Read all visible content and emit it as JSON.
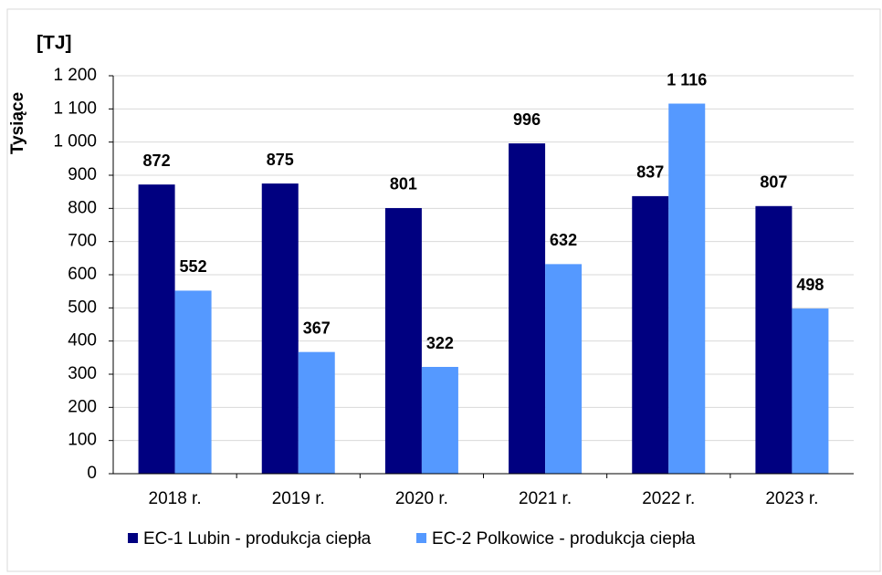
{
  "chart_data": {
    "type": "bar",
    "unit_label": "[TJ]",
    "ylabel": "Tysiące",
    "categories": [
      "2018 r.",
      "2019 r.",
      "2020 r.",
      "2021 r.",
      "2022 r.",
      "2023 r."
    ],
    "series": [
      {
        "name": "EC-1 Lubin - produkcja ciepła",
        "color": "#000080",
        "values": [
          872,
          875,
          801,
          996,
          837,
          807
        ],
        "value_labels": [
          "872",
          "875",
          "801",
          "996",
          "837",
          "807"
        ]
      },
      {
        "name": "EC-2 Polkowice - produkcja ciepła",
        "color": "#5599ff",
        "values": [
          552,
          367,
          322,
          632,
          1116,
          498
        ],
        "value_labels": [
          "552",
          "367",
          "322",
          "632",
          "1 116",
          "498"
        ]
      }
    ],
    "ylim": [
      0,
      1200
    ],
    "yticks": [
      0,
      100,
      200,
      300,
      400,
      500,
      600,
      700,
      800,
      900,
      {
        "value": 1000,
        "label": "1 000"
      },
      {
        "value": 1100,
        "label": "1 100"
      },
      {
        "value": 1200,
        "label": "1 200"
      }
    ],
    "grid": true,
    "legend": "bottom"
  }
}
